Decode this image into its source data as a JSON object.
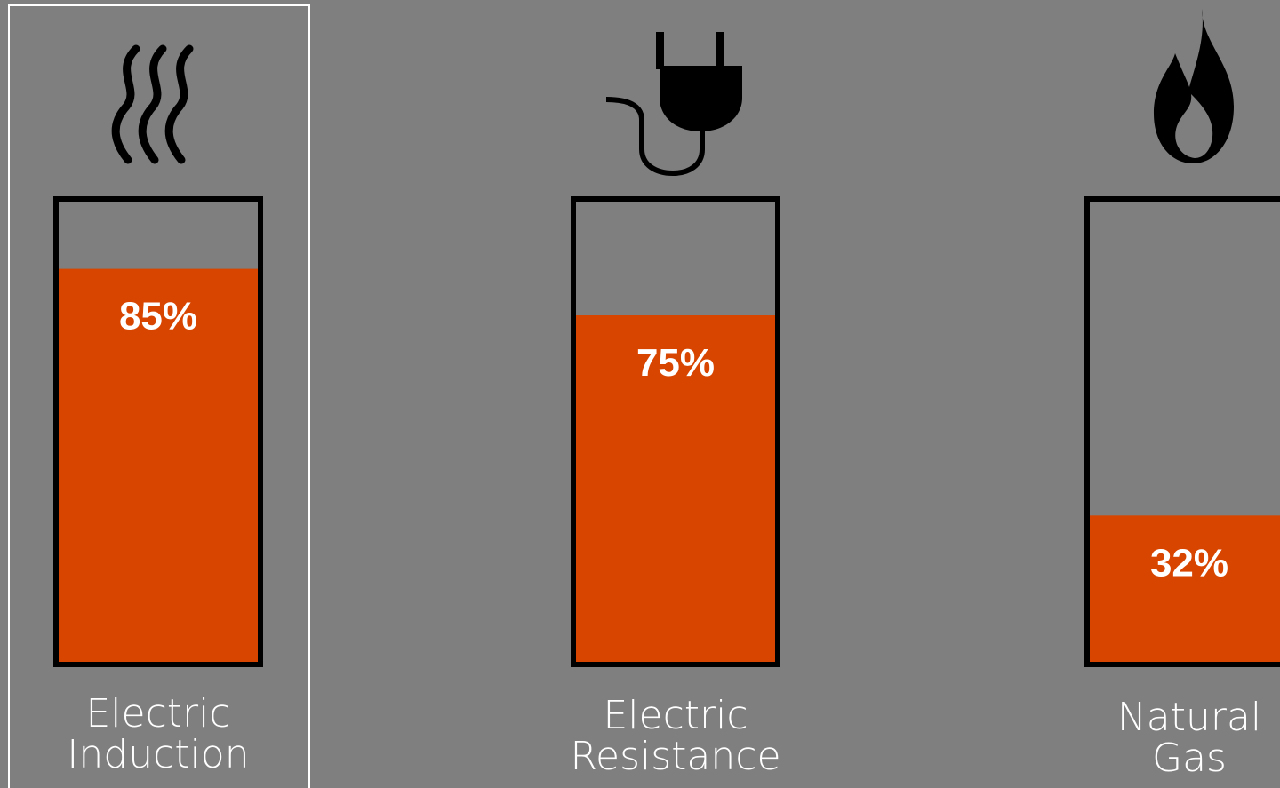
{
  "chart_data": {
    "type": "bar",
    "title": "",
    "xlabel": "",
    "ylabel": "",
    "ylim": [
      0,
      100
    ],
    "unit": "%",
    "categories": [
      {
        "lines": [
          "Electric",
          "Induction"
        ],
        "icon": "heat-waves-icon"
      },
      {
        "lines": [
          "Electric",
          "Resistance"
        ],
        "icon": "plug-icon"
      },
      {
        "lines": [
          "Natural",
          "Gas"
        ],
        "icon": "flame-icon"
      }
    ],
    "values": [
      85,
      75,
      32
    ],
    "labels": [
      "85%",
      "75%",
      "32%"
    ],
    "highlighted_index": 0,
    "colors": {
      "background": "#7f7f7f",
      "fill": "#d84500",
      "outline": "#000000",
      "text": "#ffffff",
      "highlight_frame": "#ffffff"
    }
  }
}
